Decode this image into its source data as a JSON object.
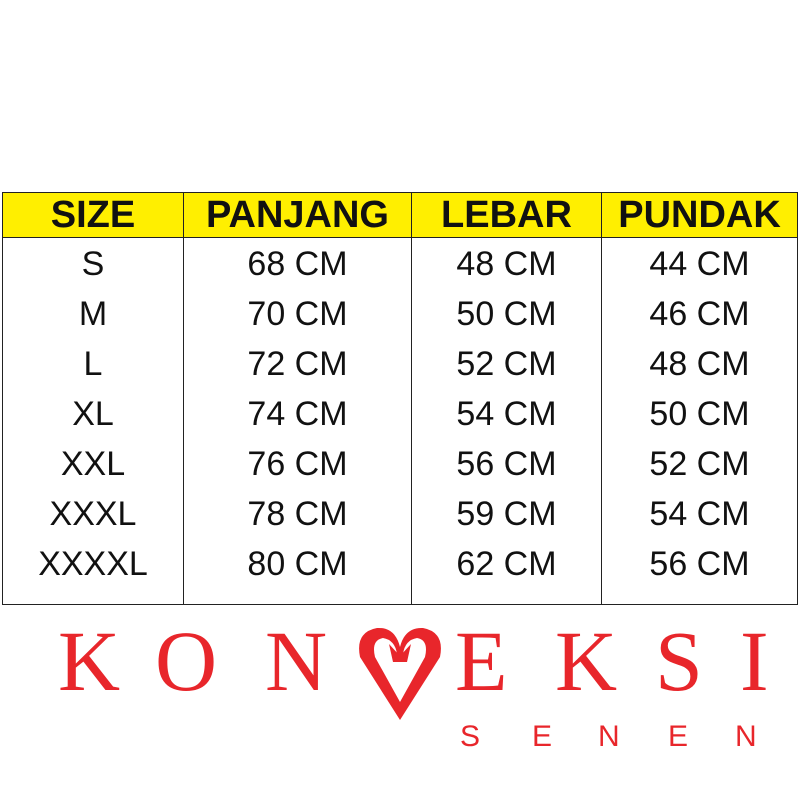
{
  "headers": [
    "SIZE",
    "PANJANG",
    "LEBAR",
    "PUNDAK"
  ],
  "rows": [
    [
      "S",
      "68 CM",
      "48 CM",
      "44 CM"
    ],
    [
      "M",
      "70 CM",
      "50 CM",
      "46 CM"
    ],
    [
      "L",
      "72 CM",
      "52 CM",
      "48 CM"
    ],
    [
      "XL",
      "74 CM",
      "54 CM",
      "50 CM"
    ],
    [
      "XXL",
      "76 CM",
      "56 CM",
      "52 CM"
    ],
    [
      "XXXL",
      "78 CM",
      "59 CM",
      "54 CM"
    ],
    [
      "XXXXL",
      "80 CM",
      "62 CM",
      "56 CM"
    ]
  ],
  "colors": {
    "header_bg": "#ffef00",
    "watermark": "#e8262b"
  },
  "watermark": {
    "main": [
      "K",
      "O",
      "N",
      "E",
      "K",
      "S",
      "I"
    ],
    "sub": [
      "S",
      "E",
      "N",
      "E",
      "N"
    ]
  }
}
